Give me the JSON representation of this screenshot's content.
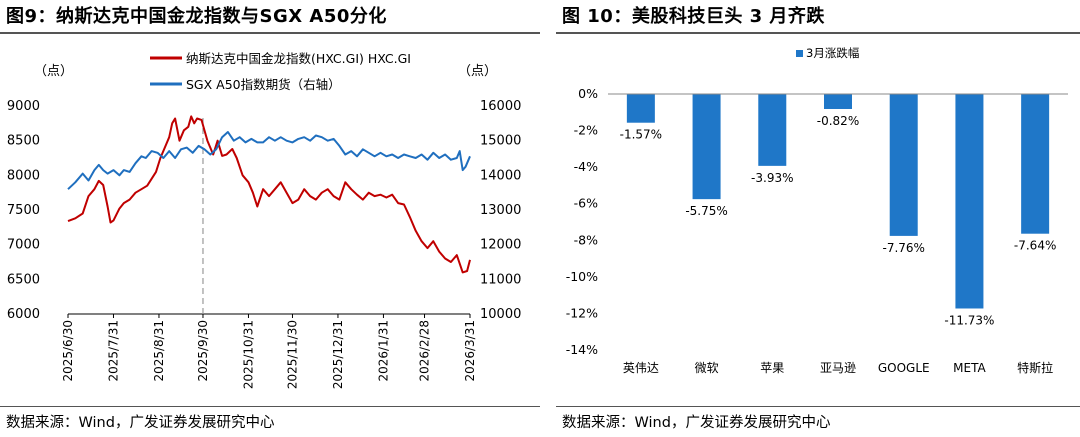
{
  "figures": [
    {
      "title": "图9：纳斯达克中国金龙指数与SGX A50分化",
      "source": "数据来源：Wind，广发证券发展研究中心"
    },
    {
      "title": "图 10：美股科技巨头 3 月齐跌",
      "source": "数据来源：Wind，广发证券发展研究中心"
    }
  ],
  "chart_data": [
    {
      "type": "line",
      "title": "",
      "left_axis_unit": "（点）",
      "right_axis_unit": "（点）",
      "ylim_left": [
        6000,
        9000
      ],
      "yticks_left": [
        "9000",
        "8500",
        "8000",
        "7500",
        "7000",
        "6500",
        "6000"
      ],
      "ylim_right": [
        10000,
        16000
      ],
      "yticks_right": [
        "16000",
        "15000",
        "14000",
        "13000",
        "12000",
        "11000",
        "10000"
      ],
      "x_tick_labels": [
        "2025/6/30",
        "2025/7/31",
        "2025/8/31",
        "2025/9/30",
        "2025/10/31",
        "2025/11/30",
        "2025/12/31",
        "2026/1/31",
        "2026/2/28",
        "2026/3/31"
      ],
      "xlim": [
        "2025-06-30",
        "2026-03-31"
      ],
      "vline": "2025-09-30",
      "legend_position": "top",
      "grid": false,
      "series": [
        {
          "name": "纳斯达克中国金龙指数(HXC.GI) HXC.GI",
          "axis": "left",
          "color": "#c00000",
          "points": [
            [
              "2025-06-30",
              7340
            ],
            [
              "2025-07-05",
              7380
            ],
            [
              "2025-07-10",
              7450
            ],
            [
              "2025-07-14",
              7700
            ],
            [
              "2025-07-18",
              7800
            ],
            [
              "2025-07-21",
              7920
            ],
            [
              "2025-07-24",
              7860
            ],
            [
              "2025-07-27",
              7550
            ],
            [
              "2025-07-29",
              7320
            ],
            [
              "2025-07-31",
              7350
            ],
            [
              "2025-08-04",
              7520
            ],
            [
              "2025-08-07",
              7600
            ],
            [
              "2025-08-11",
              7650
            ],
            [
              "2025-08-15",
              7750
            ],
            [
              "2025-08-19",
              7800
            ],
            [
              "2025-08-23",
              7850
            ],
            [
              "2025-08-26",
              7950
            ],
            [
              "2025-08-29",
              8050
            ],
            [
              "2025-09-01",
              8250
            ],
            [
              "2025-09-04",
              8400
            ],
            [
              "2025-09-07",
              8550
            ],
            [
              "2025-09-09",
              8750
            ],
            [
              "2025-09-11",
              8820
            ],
            [
              "2025-09-14",
              8500
            ],
            [
              "2025-09-17",
              8650
            ],
            [
              "2025-09-20",
              8700
            ],
            [
              "2025-09-22",
              8850
            ],
            [
              "2025-09-24",
              8750
            ],
            [
              "2025-09-26",
              8820
            ],
            [
              "2025-09-29",
              8800
            ],
            [
              "2025-10-03",
              8500
            ],
            [
              "2025-10-07",
              8300
            ],
            [
              "2025-10-10",
              8500
            ],
            [
              "2025-10-13",
              8280
            ],
            [
              "2025-10-16",
              8300
            ],
            [
              "2025-10-20",
              8380
            ],
            [
              "2025-10-23",
              8250
            ],
            [
              "2025-10-27",
              8000
            ],
            [
              "2025-10-31",
              7900
            ],
            [
              "2025-11-03",
              7750
            ],
            [
              "2025-11-06",
              7550
            ],
            [
              "2025-11-10",
              7800
            ],
            [
              "2025-11-14",
              7700
            ],
            [
              "2025-11-18",
              7800
            ],
            [
              "2025-11-22",
              7900
            ],
            [
              "2025-11-26",
              7750
            ],
            [
              "2025-11-30",
              7600
            ],
            [
              "2025-12-04",
              7650
            ],
            [
              "2025-12-08",
              7800
            ],
            [
              "2025-12-12",
              7700
            ],
            [
              "2025-12-16",
              7650
            ],
            [
              "2025-12-20",
              7750
            ],
            [
              "2025-12-24",
              7800
            ],
            [
              "2025-12-28",
              7700
            ],
            [
              "2026-01-01",
              7650
            ],
            [
              "2026-01-05",
              7900
            ],
            [
              "2026-01-09",
              7800
            ],
            [
              "2026-01-13",
              7720
            ],
            [
              "2026-01-17",
              7650
            ],
            [
              "2026-01-21",
              7750
            ],
            [
              "2026-01-25",
              7700
            ],
            [
              "2026-01-29",
              7720
            ],
            [
              "2026-02-02",
              7680
            ],
            [
              "2026-02-06",
              7720
            ],
            [
              "2026-02-10",
              7600
            ],
            [
              "2026-02-14",
              7580
            ],
            [
              "2026-02-18",
              7400
            ],
            [
              "2026-02-22",
              7200
            ],
            [
              "2026-02-26",
              7050
            ],
            [
              "2026-03-02",
              6950
            ],
            [
              "2026-03-06",
              7050
            ],
            [
              "2026-03-10",
              6900
            ],
            [
              "2026-03-14",
              6800
            ],
            [
              "2026-03-18",
              6750
            ],
            [
              "2026-03-22",
              6850
            ],
            [
              "2026-03-26",
              6600
            ],
            [
              "2026-03-29",
              6620
            ],
            [
              "2026-03-31",
              6780
            ]
          ]
        },
        {
          "name": "SGX A50指数期货（右轴）",
          "axis": "right",
          "color": "#1f6fbf",
          "points": [
            [
              "2025-06-30",
              13600
            ],
            [
              "2025-07-05",
              13800
            ],
            [
              "2025-07-10",
              14050
            ],
            [
              "2025-07-14",
              13850
            ],
            [
              "2025-07-18",
              14150
            ],
            [
              "2025-07-21",
              14300
            ],
            [
              "2025-07-24",
              14150
            ],
            [
              "2025-07-27",
              14050
            ],
            [
              "2025-07-31",
              14150
            ],
            [
              "2025-08-04",
              14000
            ],
            [
              "2025-08-07",
              14150
            ],
            [
              "2025-08-11",
              14100
            ],
            [
              "2025-08-15",
              14350
            ],
            [
              "2025-08-19",
              14550
            ],
            [
              "2025-08-22",
              14500
            ],
            [
              "2025-08-26",
              14700
            ],
            [
              "2025-08-30",
              14650
            ],
            [
              "2025-09-03",
              14500
            ],
            [
              "2025-09-07",
              14700
            ],
            [
              "2025-09-11",
              14500
            ],
            [
              "2025-09-15",
              14750
            ],
            [
              "2025-09-19",
              14800
            ],
            [
              "2025-09-23",
              14650
            ],
            [
              "2025-09-27",
              14850
            ],
            [
              "2025-10-01",
              14750
            ],
            [
              "2025-10-05",
              14600
            ],
            [
              "2025-10-09",
              14750
            ],
            [
              "2025-10-13",
              15100
            ],
            [
              "2025-10-17",
              15250
            ],
            [
              "2025-10-21",
              15000
            ],
            [
              "2025-10-25",
              15100
            ],
            [
              "2025-10-29",
              14950
            ],
            [
              "2025-11-02",
              15050
            ],
            [
              "2025-11-06",
              14950
            ],
            [
              "2025-11-10",
              14950
            ],
            [
              "2025-11-14",
              15100
            ],
            [
              "2025-11-18",
              15000
            ],
            [
              "2025-11-22",
              15100
            ],
            [
              "2025-11-26",
              15000
            ],
            [
              "2025-11-30",
              14950
            ],
            [
              "2025-12-04",
              15050
            ],
            [
              "2025-12-08",
              15100
            ],
            [
              "2025-12-12",
              15000
            ],
            [
              "2025-12-16",
              15150
            ],
            [
              "2025-12-20",
              15100
            ],
            [
              "2025-12-24",
              15000
            ],
            [
              "2025-12-28",
              15050
            ],
            [
              "2026-01-01",
              14850
            ],
            [
              "2026-01-05",
              14600
            ],
            [
              "2026-01-09",
              14700
            ],
            [
              "2026-01-13",
              14550
            ],
            [
              "2026-01-17",
              14750
            ],
            [
              "2026-01-21",
              14650
            ],
            [
              "2026-01-25",
              14550
            ],
            [
              "2026-01-29",
              14650
            ],
            [
              "2026-02-02",
              14550
            ],
            [
              "2026-02-06",
              14600
            ],
            [
              "2026-02-10",
              14500
            ],
            [
              "2026-02-14",
              14600
            ],
            [
              "2026-02-18",
              14550
            ],
            [
              "2026-02-22",
              14500
            ],
            [
              "2026-02-26",
              14600
            ],
            [
              "2026-03-02",
              14450
            ],
            [
              "2026-03-06",
              14650
            ],
            [
              "2026-03-10",
              14500
            ],
            [
              "2026-03-14",
              14600
            ],
            [
              "2026-03-18",
              14450
            ],
            [
              "2026-03-22",
              14500
            ],
            [
              "2026-03-24",
              14700
            ],
            [
              "2026-03-26",
              14150
            ],
            [
              "2026-03-28",
              14250
            ],
            [
              "2026-03-31",
              14550
            ]
          ]
        }
      ]
    },
    {
      "type": "bar",
      "title": "",
      "legend_position": "top-left",
      "grid": false,
      "ylim": [
        -14,
        0
      ],
      "yticks": [
        "0%",
        "-2%",
        "-4%",
        "-6%",
        "-8%",
        "-10%",
        "-12%",
        "-14%"
      ],
      "categories": [
        "英伟达",
        "微软",
        "苹果",
        "亚马逊",
        "GOOGLE",
        "META",
        "特斯拉"
      ],
      "series": [
        {
          "name": "3月涨跌幅",
          "color": "#1f77c8",
          "values": [
            -1.57,
            -5.75,
            -3.93,
            -0.82,
            -7.76,
            -11.73,
            -7.64
          ],
          "labels": [
            "-1.57%",
            "-5.75%",
            "-3.93%",
            "-0.82%",
            "-7.76%",
            "-11.73%",
            "-7.64%"
          ]
        }
      ]
    }
  ]
}
